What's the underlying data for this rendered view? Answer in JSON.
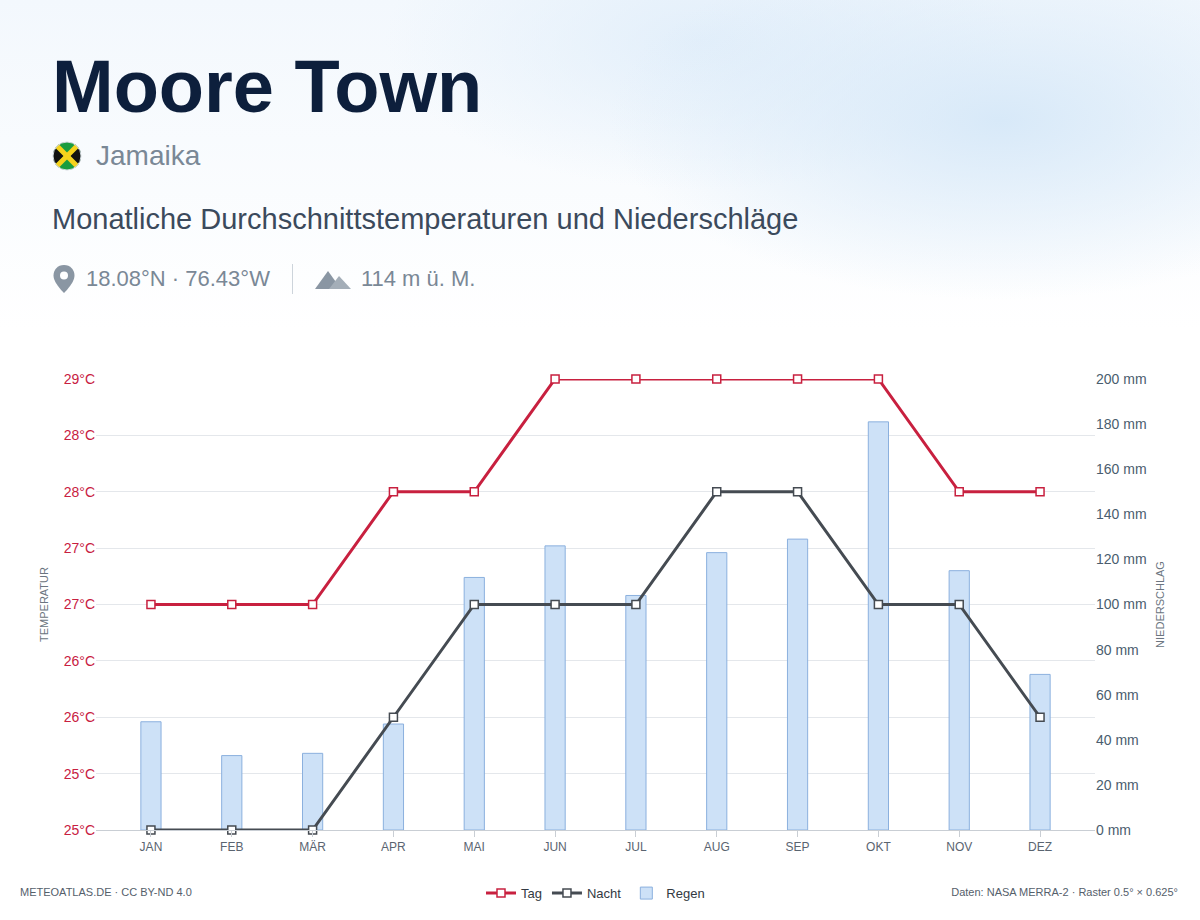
{
  "chart_data": {
    "type": "bar",
    "title": "Moore Town",
    "subtitle": "Monatliche Durchschnittstemperaturen und Niederschläge",
    "annotations": [
      "Jamaika",
      "18.08°N · 76.43°W",
      "114 m ü. M.",
      "METEOATLAS.DE · CC BY-ND 4.0",
      "Daten: NASA MERRA-2 · Raster 0.5° × 0.625°"
    ],
    "ylabel": "TEMPERATUR",
    "y2label": "NIEDERSCHLAG",
    "categories": [
      "JAN",
      "FEB",
      "MÄR",
      "APR",
      "MAI",
      "JUN",
      "JUL",
      "AUG",
      "SEP",
      "OKT",
      "NOV",
      "DEZ"
    ],
    "series": [
      {
        "name": "Tag",
        "type": "line",
        "color": "#c8203f",
        "marker": "square",
        "values": [
          27,
          27,
          27,
          28,
          28,
          29,
          29,
          29,
          29,
          29,
          28,
          28
        ]
      },
      {
        "name": "Nacht",
        "type": "line",
        "color": "#454b52",
        "marker": "square",
        "values": [
          25,
          25,
          25,
          26,
          27,
          27,
          27,
          28,
          28,
          27,
          27,
          26
        ]
      },
      {
        "name": "Regen",
        "type": "bar",
        "color": "#cde1f7",
        "axis": "y2",
        "values": [
          48,
          33,
          34,
          47,
          112,
          126,
          104,
          123,
          129,
          181,
          115,
          69
        ]
      }
    ],
    "ylim": [
      25,
      29
    ],
    "yticks": [
      {
        "value": 25,
        "label": "25°C"
      },
      {
        "value": 25.5,
        "label": "25°C"
      },
      {
        "value": 26,
        "label": "26°C"
      },
      {
        "value": 26.5,
        "label": "26°C"
      },
      {
        "value": 27,
        "label": "27°C"
      },
      {
        "value": 27.5,
        "label": "27°C"
      },
      {
        "value": 28,
        "label": "28°C"
      },
      {
        "value": 28.5,
        "label": "28°C"
      },
      {
        "value": 29,
        "label": "29°C"
      }
    ],
    "y2lim": [
      0,
      200
    ],
    "y2ticks": [
      {
        "value": 0,
        "label": "0 mm"
      },
      {
        "value": 20,
        "label": "20 mm"
      },
      {
        "value": 40,
        "label": "40 mm"
      },
      {
        "value": 60,
        "label": "60 mm"
      },
      {
        "value": 80,
        "label": "80 mm"
      },
      {
        "value": 100,
        "label": "100 mm"
      },
      {
        "value": 120,
        "label": "120 mm"
      },
      {
        "value": 140,
        "label": "140 mm"
      },
      {
        "value": 160,
        "label": "160 mm"
      },
      {
        "value": 180,
        "label": "180 mm"
      },
      {
        "value": 200,
        "label": "200 mm"
      }
    ],
    "grid": true,
    "legend": "bottom"
  }
}
